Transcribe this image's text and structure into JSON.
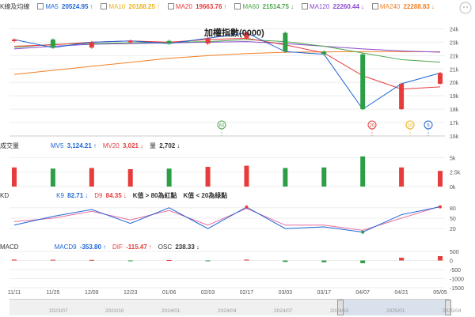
{
  "price_panel": {
    "title": "K線及均線",
    "chart_title": "加權指數(0000)",
    "ma": [
      {
        "label": "MA5",
        "value": "20524.95",
        "dir": "↑",
        "color": "#1e66d8"
      },
      {
        "label": "MA10",
        "value": "20188.25",
        "dir": "↑",
        "color": "#e8b31b"
      },
      {
        "label": "MA20",
        "value": "19663.76",
        "dir": "↑",
        "color": "#e63c3c"
      },
      {
        "label": "MA60",
        "value": "21514.75",
        "dir": "↓",
        "color": "#4ca64c"
      },
      {
        "label": "MA120",
        "value": "22260.44",
        "dir": "↓",
        "color": "#8a4bd0"
      },
      {
        "label": "MA240",
        "value": "22288.83",
        "dir": "↓",
        "color": "#f47f22"
      }
    ],
    "y_ticks": [
      "24k",
      "23k",
      "22k",
      "21k",
      "20k",
      "19k",
      "18k",
      "17k",
      "16k"
    ],
    "markers": [
      {
        "label": "60",
        "color": "#4ca64c"
      },
      {
        "label": "20",
        "color": "#e63c3c"
      },
      {
        "label": "10",
        "color": "#e8b31b"
      },
      {
        "label": "5",
        "color": "#1e66d8"
      }
    ]
  },
  "volume_panel": {
    "title": "成交量",
    "mv5_label": "MV5",
    "mv5_value": "3,124.21",
    "mv5_dir": "↑",
    "mv20_label": "MV20",
    "mv20_value": "3,021",
    "mv20_dir": "↓",
    "vol_label": "量",
    "vol_value": "2,702",
    "vol_dir": "↓",
    "y_ticks": [
      "5k",
      "2.5k",
      "0k"
    ]
  },
  "kd_panel": {
    "title": "KD",
    "k_label": "K9",
    "k_value": "82.71",
    "k_dir": "↓",
    "d_label": "D9",
    "d_value": "84.35",
    "d_dir": "↓",
    "note1": "K值 > 80為紅點",
    "note2": "K值 < 20為綠點",
    "y_ticks": [
      "80",
      "50",
      "20"
    ]
  },
  "macd_panel": {
    "title": "MACD",
    "macd_label": "MACD9",
    "macd_value": "-353.80",
    "macd_dir": "↑",
    "dif_label": "DIF",
    "dif_value": "-115.47",
    "dif_dir": "↑",
    "osc_label": "OSC",
    "osc_value": "238.33",
    "osc_dir": "↓",
    "y_ticks": [
      "500",
      "0",
      "-500",
      "-1000",
      "-1500"
    ]
  },
  "x_axis": {
    "dates": [
      "11/11",
      "11/25",
      "12/09",
      "12/23",
      "01/06",
      "02/03",
      "02/17",
      "03/03",
      "03/17",
      "04/07",
      "04/21",
      "05/05"
    ]
  },
  "navigator": {
    "labels": [
      "2023/07",
      "2023/10",
      "2024/01",
      "2024/04",
      "2024/07",
      "2024/10",
      "2025/01",
      "2025/04"
    ]
  },
  "colors": {
    "up": "#e63c3c",
    "down": "#2e9e46",
    "k_line": "#1e66d8",
    "d_line": "#e66fa0"
  },
  "chart_data": {
    "type": "candlestick",
    "title": "加權指數(0000)",
    "x": [
      "11/11",
      "11/25",
      "12/09",
      "12/23",
      "01/06",
      "02/03",
      "02/17",
      "03/03",
      "03/17",
      "04/07",
      "04/21",
      "05/05"
    ],
    "close": [
      23200,
      22600,
      23000,
      23100,
      22900,
      23300,
      23700,
      22300,
      22100,
      18000,
      19900,
      20700
    ],
    "ylim": [
      16000,
      24500
    ],
    "ma240": [
      20600,
      20900,
      21200,
      21500,
      21800,
      22000,
      22150,
      22250,
      22280,
      22300,
      22295,
      22289
    ],
    "ma120": [
      22500,
      22700,
      22850,
      22900,
      22950,
      23000,
      23050,
      22900,
      22700,
      22500,
      22350,
      22260
    ],
    "ma60": [
      22600,
      22850,
      22900,
      22950,
      23000,
      23050,
      23200,
      23050,
      22700,
      22200,
      21700,
      21515
    ],
    "ma20": [
      22700,
      22800,
      23000,
      23100,
      23000,
      23200,
      23300,
      22800,
      22200,
      20500,
      19500,
      19664
    ],
    "volume": [
      3300,
      3100,
      3200,
      3000,
      3100,
      3400,
      3600,
      3200,
      3300,
      5200,
      3300,
      2702
    ],
    "kd_k": [
      30,
      55,
      75,
      35,
      80,
      20,
      82,
      20,
      25,
      10,
      60,
      82.71
    ],
    "kd_d": [
      40,
      50,
      70,
      45,
      72,
      30,
      78,
      30,
      30,
      15,
      50,
      84.35
    ],
    "macd_osc": [
      50,
      40,
      30,
      -20,
      20,
      -10,
      50,
      -80,
      -100,
      -150,
      150,
      238.33
    ]
  }
}
